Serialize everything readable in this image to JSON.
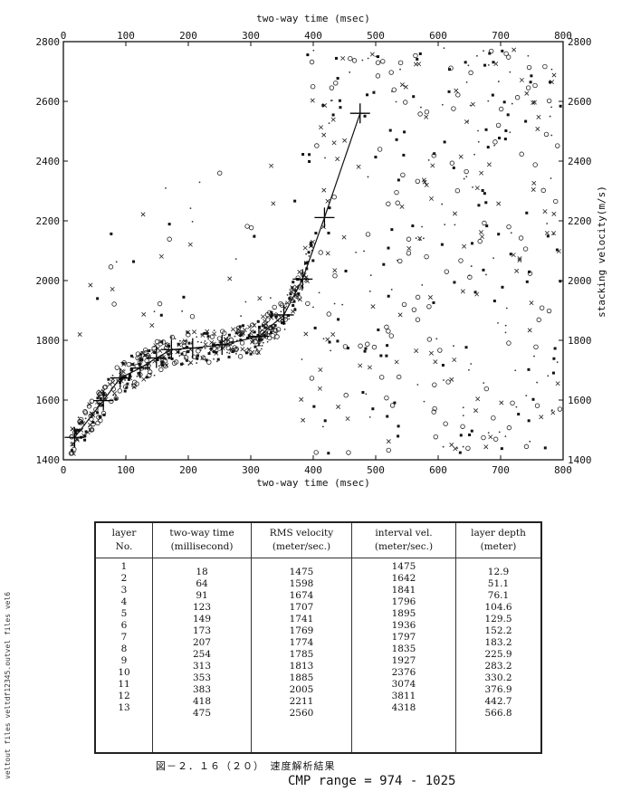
{
  "chart_data": {
    "type": "scatter",
    "title": "",
    "xlabel": "two-way time (msec)",
    "x2label": "two-way time (msec)",
    "ylabel": "stacking velocity(m/s)",
    "xlim": [
      0,
      800
    ],
    "ylim": [
      1400,
      2800
    ],
    "xticks": [
      "0",
      "100",
      "200",
      "300",
      "400",
      "500",
      "600",
      "700",
      "800"
    ],
    "yticks": [
      "1400",
      "1600",
      "1800",
      "2000",
      "2200",
      "2400",
      "2600",
      "2800"
    ],
    "picks": [
      {
        "x": 18,
        "y": 1475
      },
      {
        "x": 64,
        "y": 1598
      },
      {
        "x": 91,
        "y": 1674
      },
      {
        "x": 123,
        "y": 1707
      },
      {
        "x": 149,
        "y": 1741
      },
      {
        "x": 173,
        "y": 1769
      },
      {
        "x": 207,
        "y": 1774
      },
      {
        "x": 254,
        "y": 1785
      },
      {
        "x": 313,
        "y": 1813
      },
      {
        "x": 353,
        "y": 1885
      },
      {
        "x": 383,
        "y": 2005
      },
      {
        "x": 418,
        "y": 2211
      },
      {
        "x": 475,
        "y": 2560
      }
    ],
    "grid": false,
    "legend": "none"
  },
  "table": {
    "headers": [
      {
        "l1": "layer",
        "l2": "No."
      },
      {
        "l1": "two-way time",
        "l2": "(millisecond)"
      },
      {
        "l1": "RMS velocity",
        "l2": "(meter/sec.)"
      },
      {
        "l1": "interval vel.",
        "l2": "(meter/sec.)"
      },
      {
        "l1": "layer depth",
        "l2": "(meter)"
      }
    ],
    "layer_no": [
      "1",
      "2",
      "3",
      "4",
      "5",
      "6",
      "7",
      "8",
      "9",
      "10",
      "11",
      "12",
      "13"
    ],
    "two_way_time": [
      "18",
      "64",
      "91",
      "123",
      "149",
      "173",
      "207",
      "254",
      "313",
      "353",
      "383",
      "418",
      "475"
    ],
    "rms_velocity": [
      "1475",
      "1598",
      "1674",
      "1707",
      "1741",
      "1769",
      "1774",
      "1785",
      "1813",
      "1885",
      "2005",
      "2211",
      "2560"
    ],
    "interval_vel": [
      "1475",
      "1642",
      "1841",
      "1796",
      "1895",
      "1936",
      "1797",
      "1835",
      "1927",
      "2376",
      "3074",
      "3811",
      "4318"
    ],
    "layer_depth": [
      "12.9",
      "51.1",
      "76.1",
      "104.6",
      "129.5",
      "152.2",
      "183.2",
      "225.9",
      "283.2",
      "330.2",
      "376.9",
      "442.7",
      "566.8"
    ]
  },
  "caption": "図－２．１６（２０）　速度解析結果",
  "cmp_range": "CMP range =  974 - 1025",
  "side_note": "veltout files veltdf12345.outvel files vel6"
}
